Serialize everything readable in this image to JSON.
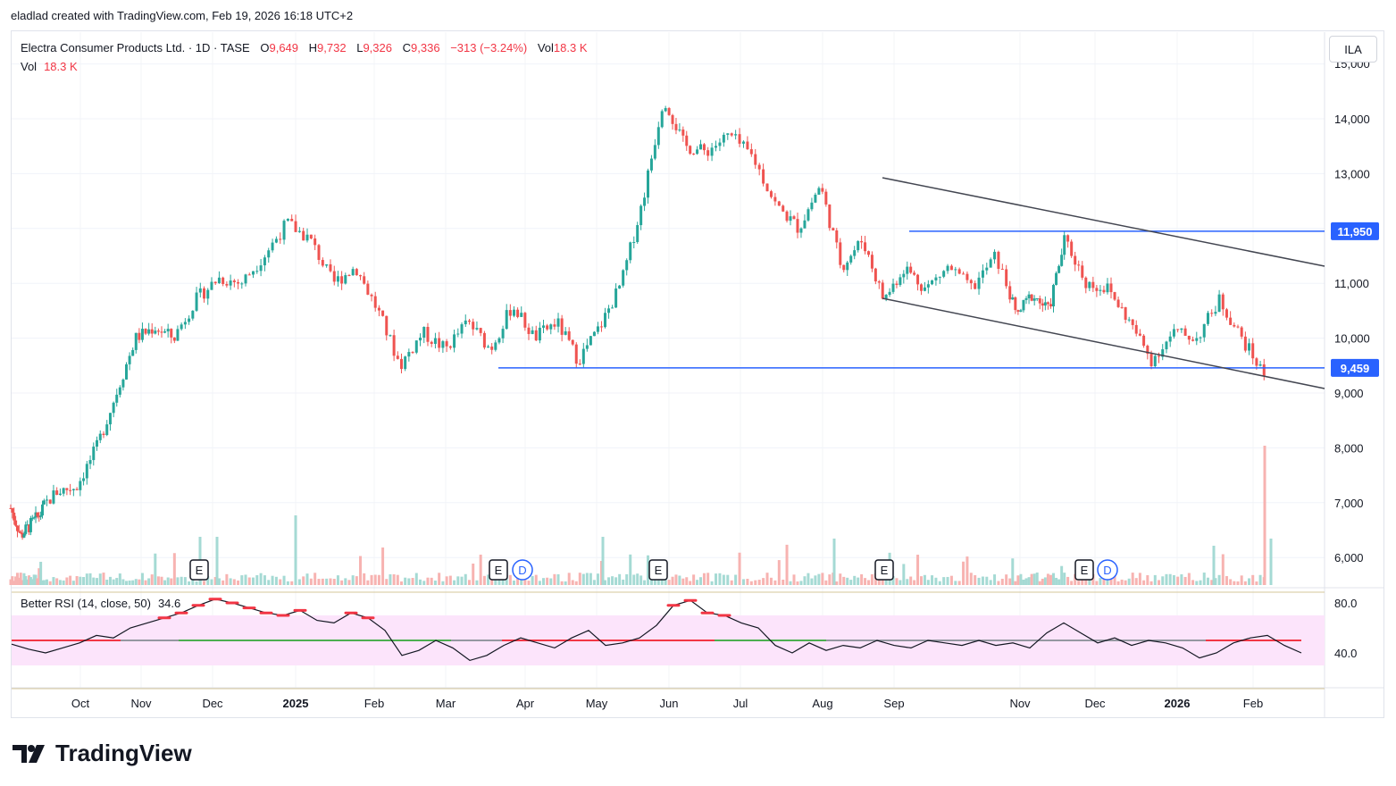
{
  "caption": "eladlad created with TradingView.com, Feb 19, 2026 16:18 UTC+2",
  "legend": {
    "symbol": "Electra Consumer Products Ltd. · 1D · TASE",
    "o_label": "O",
    "o_value": "9,649",
    "h_label": "H",
    "h_value": "9,732",
    "l_label": "L",
    "l_value": "9,326",
    "c_label": "C",
    "c_value": "9,336",
    "change": "−313 (−3.24%)",
    "vol_label": "Vol",
    "vol_value": "18.3 K"
  },
  "volume_legend": {
    "label": "Vol",
    "value": "18.3 K"
  },
  "rsi_legend": {
    "label": "Better RSI (14, close, 50)",
    "value": "34.6"
  },
  "currency": "ILA",
  "brand": "TradingView",
  "colors": {
    "up": "#26a69a",
    "down": "#ef5350",
    "level": "#2962ff",
    "channel": "#434651",
    "rsi_band": "#fce4fb",
    "rsi_up": "#4caf50",
    "rsi_down": "#f23645",
    "rsi_neutral": "#9598a1"
  },
  "chart_data": {
    "type": "candlestick",
    "y_ticks": [
      "15,000",
      "14,000",
      "13,000",
      "11,000",
      "10,000",
      "9,000",
      "8,000",
      "7,000",
      "6,000"
    ],
    "ylim": [
      5600,
      15200
    ],
    "x_ticks": [
      "Oct",
      "Nov",
      "Dec",
      "2025",
      "Feb",
      "Mar",
      "Apr",
      "May",
      "Jun",
      "Jul",
      "Aug",
      "Sep",
      "Nov",
      "Dec",
      "2026",
      "Feb"
    ],
    "bold_x_ticks": [
      "2025",
      "2026"
    ],
    "price_labels": [
      {
        "label": "11,950",
        "value": 11950
      },
      {
        "label": "9,459",
        "value": 9459
      }
    ],
    "levels": [
      {
        "name": "resistance",
        "value": 11950,
        "from": "Sep",
        "to": "end"
      },
      {
        "name": "support",
        "value": 9459,
        "from": "Mar",
        "to": "end"
      }
    ],
    "channel": [
      {
        "from": [
          "Aug 29 2025",
          12950
        ],
        "to": [
          "Feb 27 2026",
          11350
        ]
      },
      {
        "from": [
          "Aug 29 2025",
          10750
        ],
        "to": [
          "Feb 27 2026",
          9100
        ]
      }
    ],
    "price_path": [
      {
        "date": "Sep 2024",
        "value": 6900
      },
      {
        "date": "Sep 2024",
        "value": 6400
      },
      {
        "date": "Oct 2024",
        "value": 6600
      },
      {
        "date": "Oct 2024",
        "value": 6800
      },
      {
        "date": "Nov 2024",
        "value": 7200
      },
      {
        "date": "Nov 2024",
        "value": 7300
      },
      {
        "date": "Nov 2024",
        "value": 8000
      },
      {
        "date": "Dec 2024",
        "value": 9000
      },
      {
        "date": "Dec 2024",
        "value": 10000
      },
      {
        "date": "Dec 2024",
        "value": 10200
      },
      {
        "date": "Jan 2025",
        "value": 10000
      },
      {
        "date": "Jan 2025",
        "value": 10700
      },
      {
        "date": "Jan 2025",
        "value": 11100
      },
      {
        "date": "Feb 2025",
        "value": 11000
      },
      {
        "date": "Feb 2025",
        "value": 11500
      },
      {
        "date": "Feb 2025",
        "value": 12100
      },
      {
        "date": "Mar 2025",
        "value": 11800
      },
      {
        "date": "Mar 2025",
        "value": 11000
      },
      {
        "date": "Mar 2025",
        "value": 11300
      },
      {
        "date": "Mar 2025",
        "value": 10500
      },
      {
        "date": "Apr 2025",
        "value": 9500
      },
      {
        "date": "Apr 2025",
        "value": 10100
      },
      {
        "date": "Apr 2025",
        "value": 9800
      },
      {
        "date": "May 2025",
        "value": 10300
      },
      {
        "date": "May 2025",
        "value": 9800
      },
      {
        "date": "May 2025",
        "value": 10600
      },
      {
        "date": "Jun 2025",
        "value": 10000
      },
      {
        "date": "Jun 2025",
        "value": 10300
      },
      {
        "date": "Jun 2025",
        "value": 9600
      },
      {
        "date": "Jun 2025",
        "value": 10200
      },
      {
        "date": "Jun 2025",
        "value": 11000
      },
      {
        "date": "Jul 2025",
        "value": 12500
      },
      {
        "date": "Jul 2025",
        "value": 14400
      },
      {
        "date": "Jul 2025",
        "value": 13500
      },
      {
        "date": "Jul 2025",
        "value": 13400
      },
      {
        "date": "Aug 2025",
        "value": 13700
      },
      {
        "date": "Aug 2025",
        "value": 13300
      },
      {
        "date": "Aug 2025",
        "value": 12400
      },
      {
        "date": "Aug 2025",
        "value": 12000
      },
      {
        "date": "Aug 2025",
        "value": 12800
      },
      {
        "date": "Sep 2025",
        "value": 11300
      },
      {
        "date": "Sep 2025",
        "value": 11800
      },
      {
        "date": "Sep 2025",
        "value": 10700
      },
      {
        "date": "Oct 2025",
        "value": 11300
      },
      {
        "date": "Oct 2025",
        "value": 10900
      },
      {
        "date": "Oct 2025",
        "value": 11300
      },
      {
        "date": "Nov 2025",
        "value": 10900
      },
      {
        "date": "Nov 2025",
        "value": 11500
      },
      {
        "date": "Nov 2025",
        "value": 10400
      },
      {
        "date": "Dec 2025",
        "value": 10800
      },
      {
        "date": "Dec 2025",
        "value": 10500
      },
      {
        "date": "Dec 2025",
        "value": 11800
      },
      {
        "date": "Jan 2026",
        "value": 11000
      },
      {
        "date": "Jan 2026",
        "value": 10900
      },
      {
        "date": "Jan 2026",
        "value": 10300
      },
      {
        "date": "Jan 2026",
        "value": 9600
      },
      {
        "date": "Jan 2026",
        "value": 10100
      },
      {
        "date": "Feb 2026",
        "value": 10000
      },
      {
        "date": "Feb 2026",
        "value": 10700
      },
      {
        "date": "Feb 2026",
        "value": 10000
      },
      {
        "date": "Feb 2026",
        "value": 9336
      }
    ],
    "events": [
      {
        "type": "E",
        "date": "Nov 2024"
      },
      {
        "type": "E",
        "date": "Mar 2025"
      },
      {
        "type": "D",
        "date": "Mar 2025"
      },
      {
        "type": "E",
        "date": "May 2025"
      },
      {
        "type": "E",
        "date": "Aug 2025"
      },
      {
        "type": "E",
        "date": "Dec 2025"
      },
      {
        "type": "D",
        "date": "Dec 2025"
      }
    ],
    "rsi": {
      "y_ticks": [
        "80.0",
        "40.0"
      ],
      "ylim": [
        10,
        90
      ],
      "band": [
        30,
        70
      ],
      "midline": 50,
      "path": [
        47,
        43,
        40,
        44,
        48,
        54,
        52,
        60,
        64,
        68,
        72,
        78,
        83,
        80,
        76,
        72,
        70,
        74,
        66,
        64,
        72,
        68,
        58,
        38,
        42,
        50,
        44,
        34,
        38,
        46,
        52,
        48,
        44,
        52,
        58,
        46,
        48,
        52,
        62,
        78,
        82,
        72,
        70,
        64,
        60,
        46,
        40,
        48,
        42,
        46,
        44,
        50,
        46,
        44,
        50,
        48,
        46,
        50,
        46,
        48,
        44,
        56,
        64,
        56,
        48,
        52,
        46,
        50,
        48,
        44,
        36,
        40,
        48,
        52,
        54,
        46,
        40
      ]
    }
  }
}
